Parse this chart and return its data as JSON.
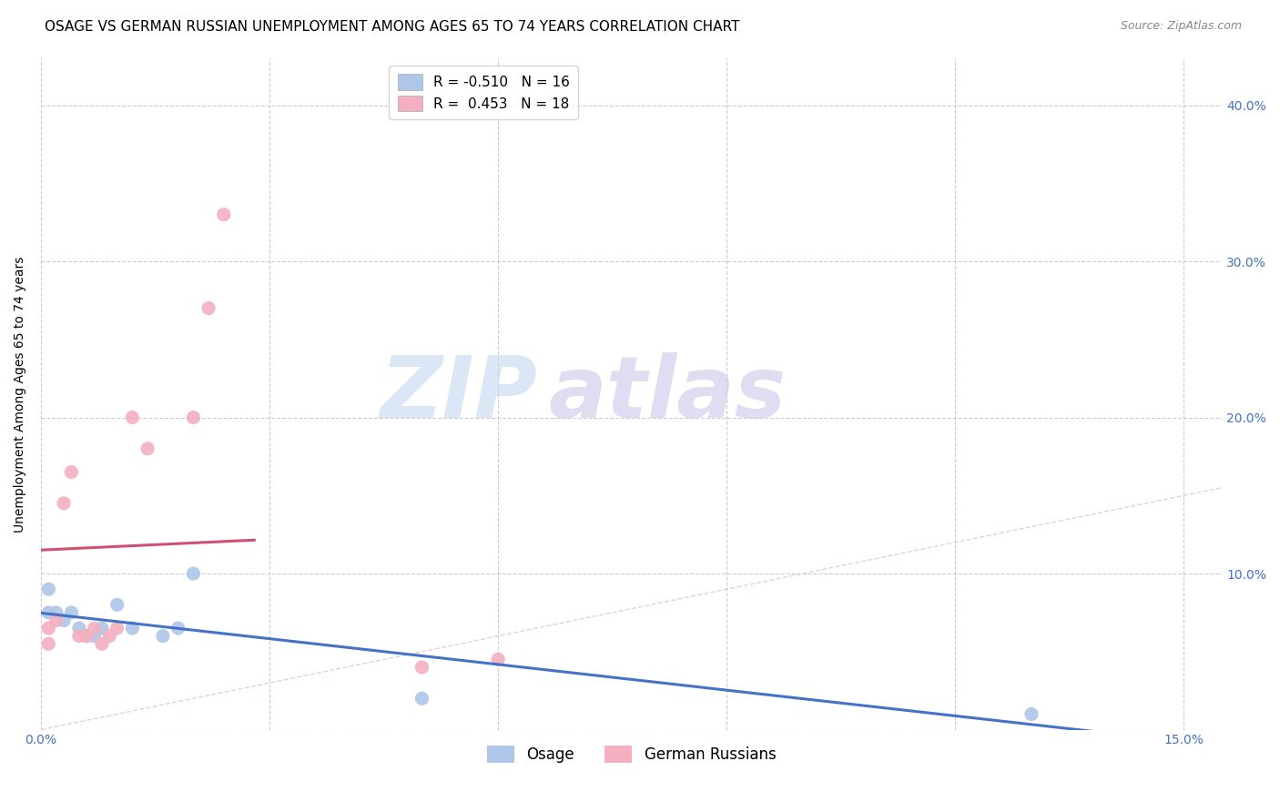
{
  "title": "OSAGE VS GERMAN RUSSIAN UNEMPLOYMENT AMONG AGES 65 TO 74 YEARS CORRELATION CHART",
  "source": "Source: ZipAtlas.com",
  "ylabel": "Unemployment Among Ages 65 to 74 years",
  "xlim": [
    0.0,
    0.155
  ],
  "ylim": [
    0.0,
    0.43
  ],
  "xticks": [
    0.0,
    0.03,
    0.06,
    0.09,
    0.12,
    0.15
  ],
  "yticks": [
    0.0,
    0.1,
    0.2,
    0.3,
    0.4
  ],
  "xtick_labels": [
    "0.0%",
    "",
    "",
    "",
    "",
    "15.0%"
  ],
  "right_ytick_labels": [
    "",
    "10.0%",
    "20.0%",
    "30.0%",
    "40.0%"
  ],
  "osage_x": [
    0.001,
    0.001,
    0.002,
    0.003,
    0.004,
    0.005,
    0.006,
    0.007,
    0.008,
    0.01,
    0.012,
    0.016,
    0.018,
    0.02,
    0.13,
    0.05
  ],
  "osage_y": [
    0.09,
    0.075,
    0.075,
    0.07,
    0.075,
    0.065,
    0.06,
    0.06,
    0.065,
    0.08,
    0.065,
    0.06,
    0.065,
    0.1,
    0.01,
    0.02
  ],
  "german_x": [
    0.001,
    0.001,
    0.002,
    0.003,
    0.004,
    0.005,
    0.006,
    0.007,
    0.008,
    0.009,
    0.01,
    0.012,
    0.014,
    0.02,
    0.022,
    0.024,
    0.05,
    0.06
  ],
  "german_y": [
    0.065,
    0.055,
    0.07,
    0.145,
    0.165,
    0.06,
    0.06,
    0.065,
    0.055,
    0.06,
    0.065,
    0.2,
    0.18,
    0.2,
    0.27,
    0.33,
    0.04,
    0.045
  ],
  "osage_fill": "#aec6e8",
  "german_fill": "#f4afc0",
  "osage_line": "#4472c4",
  "german_line": "#d05070",
  "R_osage": -0.51,
  "N_osage": 16,
  "R_german": 0.453,
  "N_german": 18,
  "diagonal_color": "#cccccc",
  "title_fontsize": 11,
  "axis_label_fontsize": 10,
  "tick_fontsize": 10,
  "legend_fontsize": 11,
  "source_fontsize": 9,
  "marker_size": 120
}
